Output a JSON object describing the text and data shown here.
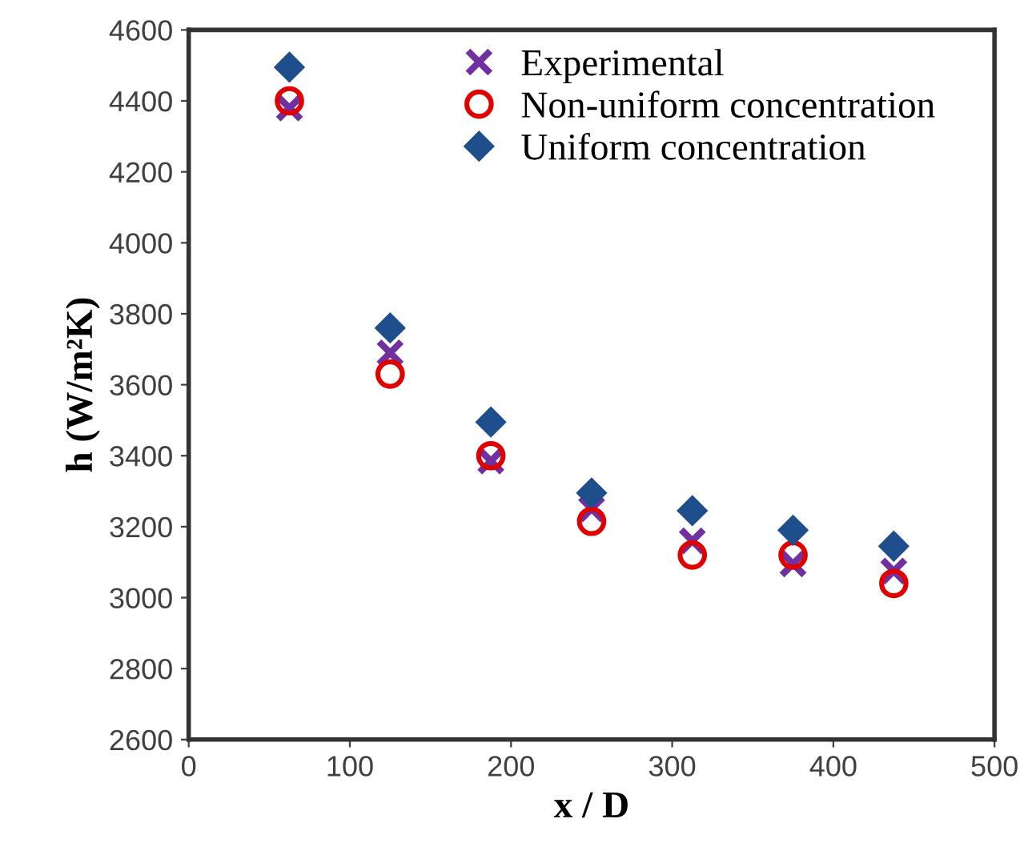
{
  "chart_data": {
    "type": "scatter",
    "xlabel": "x / D",
    "ylabel": "h (W/m²K)",
    "x": [
      62.5,
      125,
      187.5,
      250,
      312.5,
      375,
      437.5
    ],
    "series": [
      {
        "name": "Experimental",
        "color": "#7030a0",
        "marker": "cross",
        "values": [
          4380,
          3690,
          3385,
          3250,
          3160,
          3095,
          3075
        ]
      },
      {
        "name": "Non-uniform concentration",
        "color": "#e00000",
        "marker": "circle",
        "values": [
          4400,
          3630,
          3400,
          3215,
          3120,
          3120,
          3040
        ]
      },
      {
        "name": "Uniform concentration",
        "color": "#1f4e8c",
        "marker": "diamond",
        "values": [
          4495,
          3760,
          3495,
          3295,
          3245,
          3190,
          3145
        ]
      }
    ],
    "xlim": [
      0,
      500
    ],
    "xticks": [
      0,
      100,
      200,
      300,
      400,
      500
    ],
    "ylim": [
      2600,
      4600
    ],
    "yticks": [
      2600,
      2800,
      3000,
      3200,
      3400,
      3600,
      3800,
      4000,
      4200,
      4400,
      4600
    ],
    "grid": false,
    "legend": "top"
  }
}
